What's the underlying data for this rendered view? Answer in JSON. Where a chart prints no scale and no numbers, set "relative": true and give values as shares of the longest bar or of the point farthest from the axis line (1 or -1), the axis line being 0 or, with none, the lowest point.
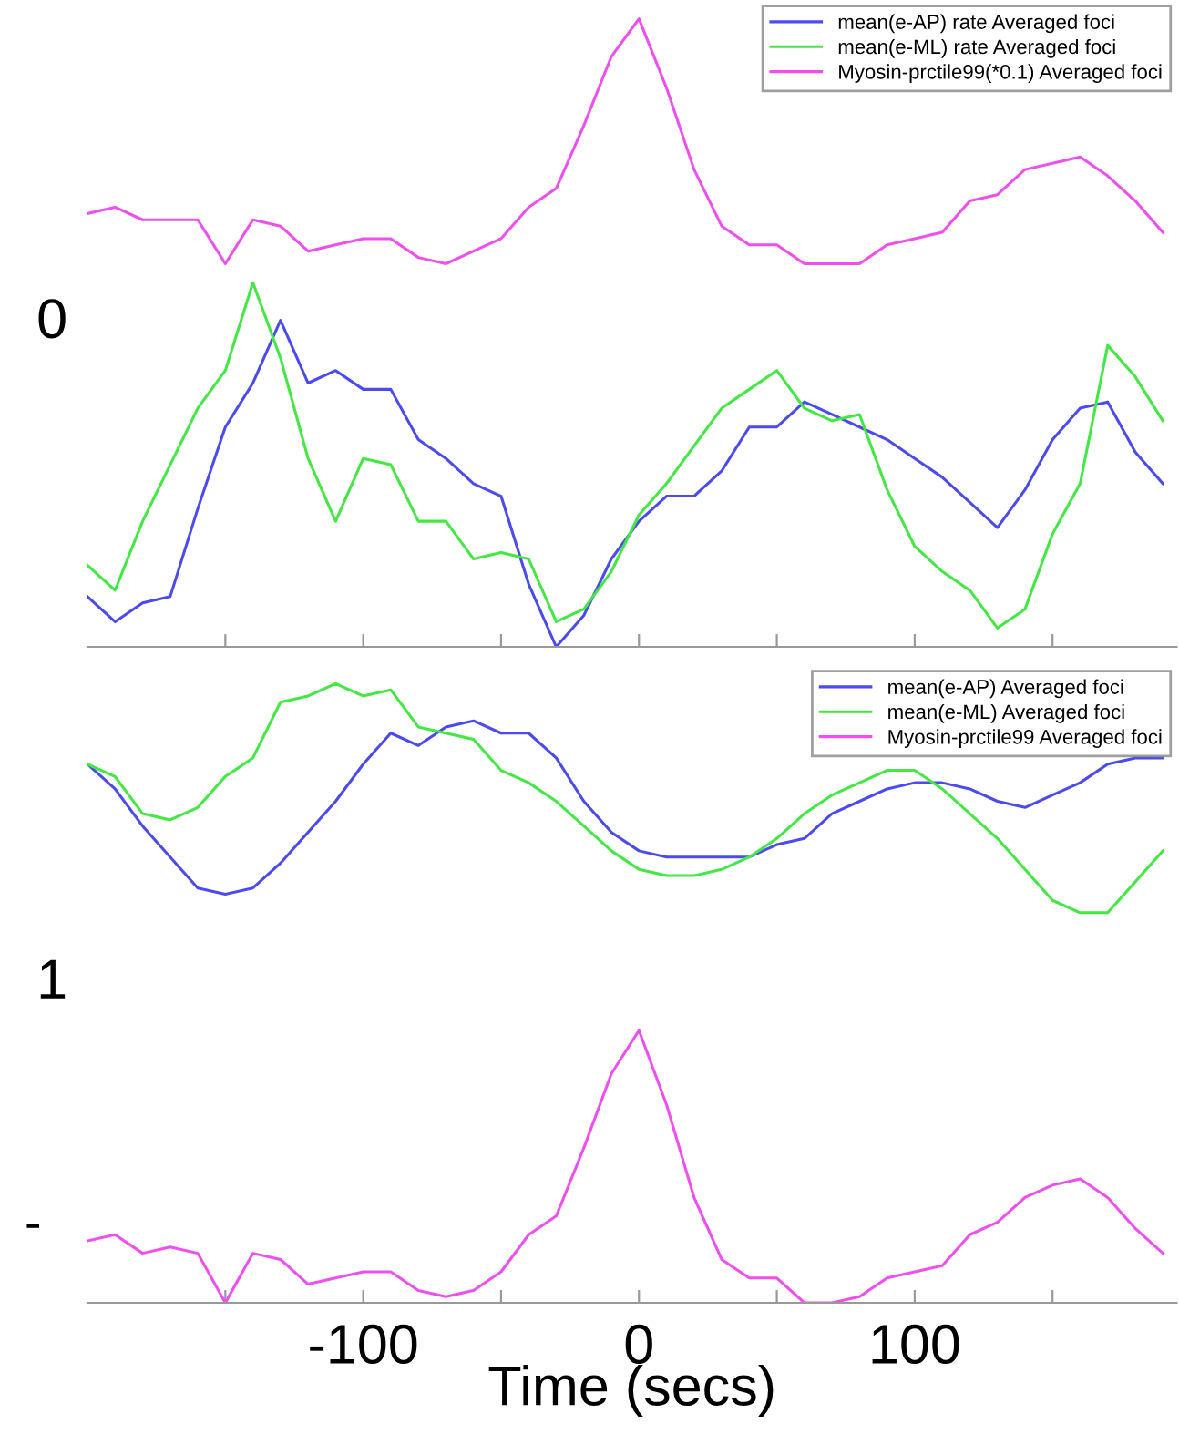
{
  "chart_data": [
    {
      "type": "line",
      "relative": true,
      "ylabel": "0",
      "x": [
        -200,
        -190,
        -180,
        -170,
        -160,
        -150,
        -140,
        -130,
        -120,
        -110,
        -100,
        -90,
        -80,
        -70,
        -60,
        -50,
        -40,
        -30,
        -20,
        -10,
        0,
        10,
        20,
        30,
        40,
        50,
        60,
        70,
        80,
        90,
        100,
        110,
        120,
        130,
        140,
        150,
        160,
        170,
        180,
        190
      ],
      "xlim": [
        -200,
        195
      ],
      "xticks": [
        {
          "value": -150,
          "label": null
        },
        {
          "value": -100,
          "label": null
        },
        {
          "value": -50,
          "label": null
        },
        {
          "value": 0,
          "label": null
        },
        {
          "value": 50,
          "label": null
        },
        {
          "value": 100,
          "label": null
        },
        {
          "value": 150,
          "label": null
        }
      ],
      "tick_labels": false,
      "legend": "top right",
      "grid": false,
      "series": [
        {
          "name": "mean(e-AP) rate Averaged foci",
          "color": "#4b4bef",
          "values": [
            0.08,
            0.04,
            0.07,
            0.08,
            0.22,
            0.35,
            0.42,
            0.52,
            0.42,
            0.44,
            0.41,
            0.41,
            0.33,
            0.3,
            0.26,
            0.24,
            0.1,
            0,
            0.05,
            0.14,
            0.2,
            0.24,
            0.24,
            0.28,
            0.35,
            0.35,
            0.39,
            0.37,
            0.35,
            0.33,
            0.3,
            0.27,
            0.23,
            0.19,
            0.25,
            0.33,
            0.38,
            0.39,
            0.31,
            0.26
          ]
        },
        {
          "name": "mean(e-ML) rate Averaged foci",
          "color": "#44e844",
          "values": [
            0.13,
            0.09,
            0.2,
            0.29,
            0.38,
            0.44,
            0.58,
            0.46,
            0.3,
            0.2,
            0.3,
            0.29,
            0.2,
            0.2,
            0.14,
            0.15,
            0.14,
            0.04,
            0.06,
            0.12,
            0.21,
            0.26,
            0.32,
            0.38,
            0.41,
            0.44,
            0.38,
            0.36,
            0.37,
            0.25,
            0.16,
            0.12,
            0.09,
            0.03,
            0.06,
            0.18,
            0.26,
            0.48,
            0.43,
            0.36
          ]
        },
        {
          "name": "Myosin-prctile99(*0.1) Averaged foci",
          "color": "#f04ff0",
          "values": [
            0.69,
            0.7,
            0.68,
            0.68,
            0.68,
            0.61,
            0.68,
            0.67,
            0.63,
            0.64,
            0.65,
            0.65,
            0.62,
            0.61,
            0.63,
            0.65,
            0.7,
            0.73,
            0.83,
            0.94,
            1,
            0.89,
            0.76,
            0.67,
            0.64,
            0.64,
            0.61,
            0.61,
            0.61,
            0.64,
            0.65,
            0.66,
            0.71,
            0.72,
            0.76,
            0.77,
            0.78,
            0.75,
            0.71,
            0.66
          ]
        }
      ]
    },
    {
      "type": "line",
      "relative": true,
      "ylabel": "1",
      "xlabel": "Time (secs)",
      "annotations": [
        "-"
      ],
      "x": [
        -200,
        -190,
        -180,
        -170,
        -160,
        -150,
        -140,
        -130,
        -120,
        -110,
        -100,
        -90,
        -80,
        -70,
        -60,
        -50,
        -40,
        -30,
        -20,
        -10,
        0,
        10,
        20,
        30,
        40,
        50,
        60,
        70,
        80,
        90,
        100,
        110,
        120,
        130,
        140,
        150,
        160,
        170,
        180,
        190
      ],
      "xlim": [
        -200,
        195
      ],
      "xticks": [
        {
          "value": -150,
          "label": null
        },
        -100,
        {
          "value": -50,
          "label": null
        },
        0,
        {
          "value": 50,
          "label": null
        },
        100,
        {
          "value": 150,
          "label": null
        }
      ],
      "tick_labels": "x",
      "legend": "top right",
      "grid": false,
      "series": [
        {
          "name": "mean(e-AP) Averaged foci",
          "color": "#4b4bef",
          "values": [
            0.87,
            0.83,
            0.77,
            0.72,
            0.67,
            0.66,
            0.67,
            0.71,
            0.76,
            0.81,
            0.87,
            0.92,
            0.9,
            0.93,
            0.94,
            0.92,
            0.92,
            0.88,
            0.81,
            0.76,
            0.73,
            0.72,
            0.72,
            0.72,
            0.72,
            0.74,
            0.75,
            0.79,
            0.81,
            0.83,
            0.84,
            0.84,
            0.83,
            0.81,
            0.8,
            0.82,
            0.84,
            0.87,
            0.88,
            0.88
          ]
        },
        {
          "name": "mean(e-ML) Averaged foci",
          "color": "#44e844",
          "values": [
            0.87,
            0.85,
            0.79,
            0.78,
            0.8,
            0.85,
            0.88,
            0.97,
            0.98,
            1,
            0.98,
            0.99,
            0.93,
            0.92,
            0.91,
            0.86,
            0.84,
            0.81,
            0.77,
            0.73,
            0.7,
            0.69,
            0.69,
            0.7,
            0.72,
            0.75,
            0.79,
            0.82,
            0.84,
            0.86,
            0.86,
            0.83,
            0.79,
            0.75,
            0.7,
            0.65,
            0.63,
            0.63,
            0.68,
            0.73
          ]
        },
        {
          "name": "Myosin-prctile99 Averaged foci",
          "color": "#f04ff0",
          "values": [
            0.1,
            0.11,
            0.08,
            0.09,
            0.08,
            0,
            0.08,
            0.07,
            0.03,
            0.04,
            0.05,
            0.05,
            0.02,
            0.01,
            0.02,
            0.05,
            0.11,
            0.14,
            0.25,
            0.37,
            0.44,
            0.32,
            0.17,
            0.07,
            0.04,
            0.04,
            0.0,
            0.0,
            0.01,
            0.04,
            0.05,
            0.06,
            0.11,
            0.13,
            0.17,
            0.19,
            0.2,
            0.17,
            0.12,
            0.08
          ]
        }
      ]
    }
  ]
}
